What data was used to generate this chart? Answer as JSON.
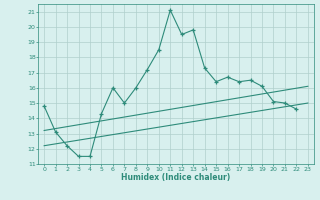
{
  "xlabel": "Humidex (Indice chaleur)",
  "x": [
    0,
    1,
    2,
    3,
    4,
    5,
    6,
    7,
    8,
    9,
    10,
    11,
    12,
    13,
    14,
    15,
    16,
    17,
    18,
    19,
    20,
    21,
    22,
    23
  ],
  "main_line": [
    14.8,
    13.1,
    12.2,
    11.5,
    11.5,
    14.3,
    16.0,
    15.0,
    16.0,
    17.2,
    18.5,
    21.1,
    19.5,
    19.8,
    17.3,
    16.4,
    16.7,
    16.4,
    16.5,
    16.1,
    15.1,
    15.0,
    14.6,
    null
  ],
  "trend1_x": [
    0,
    23
  ],
  "trend1_y": [
    13.2,
    16.1
  ],
  "trend2_x": [
    0,
    23
  ],
  "trend2_y": [
    12.2,
    15.0
  ],
  "line_color": "#2e8b7a",
  "bg_color": "#d8f0ee",
  "grid_color": "#b0cfcc",
  "ylim": [
    11,
    21.5
  ],
  "xlim": [
    -0.5,
    23.5
  ],
  "yticks": [
    11,
    12,
    13,
    14,
    15,
    16,
    17,
    18,
    19,
    20,
    21
  ],
  "xticks": [
    0,
    1,
    2,
    3,
    4,
    5,
    6,
    7,
    8,
    9,
    10,
    11,
    12,
    13,
    14,
    15,
    16,
    17,
    18,
    19,
    20,
    21,
    22,
    23
  ]
}
